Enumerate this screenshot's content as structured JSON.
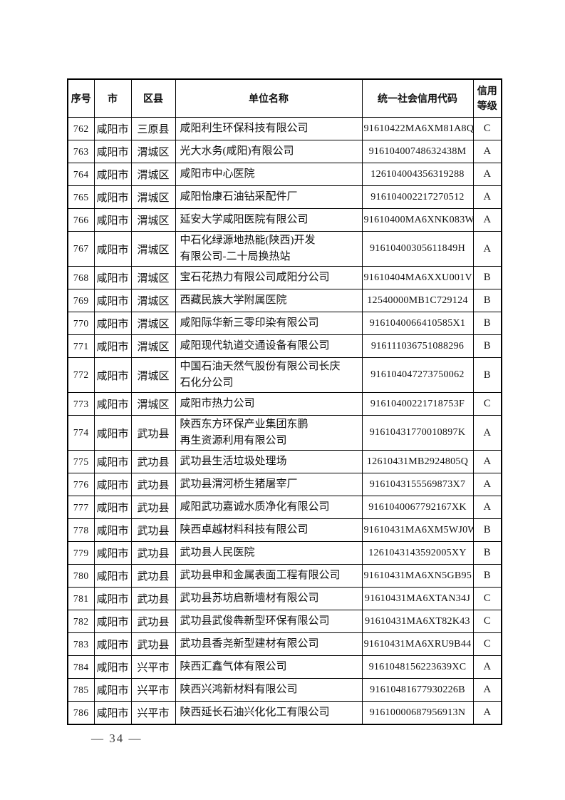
{
  "page": {
    "footer_page_number": "— 34 —"
  },
  "table": {
    "headers": [
      "序号",
      "市",
      "区县",
      "单位名称",
      "统一社会信用代码",
      "信用等级"
    ],
    "rows": [
      {
        "no": "762",
        "city": "咸阳市",
        "district": "三原县",
        "name_lines": [
          "咸阳利生环保科技有限公司"
        ],
        "code": "91610422MA6XM81A8Q",
        "grade": "C"
      },
      {
        "no": "763",
        "city": "咸阳市",
        "district": "渭城区",
        "name_lines": [
          "光大水务(咸阳)有限公司"
        ],
        "code": "91610400748632438M",
        "grade": "A"
      },
      {
        "no": "764",
        "city": "咸阳市",
        "district": "渭城区",
        "name_lines": [
          "咸阳市中心医院"
        ],
        "code": "126104004356319288",
        "grade": "A"
      },
      {
        "no": "765",
        "city": "咸阳市",
        "district": "渭城区",
        "name_lines": [
          "咸阳怡康石油钻采配件厂"
        ],
        "code": "916104002217270512",
        "grade": "A"
      },
      {
        "no": "766",
        "city": "咸阳市",
        "district": "渭城区",
        "name_lines": [
          "延安大学咸阳医院有限公司"
        ],
        "code": "91610400MA6XNK083W",
        "grade": "A"
      },
      {
        "no": "767",
        "city": "咸阳市",
        "district": "渭城区",
        "name_lines": [
          "中石化绿源地热能(陕西)开发",
          "有限公司-二十局换热站"
        ],
        "code": "91610400305611849H",
        "grade": "A"
      },
      {
        "no": "768",
        "city": "咸阳市",
        "district": "渭城区",
        "name_lines": [
          "宝石花热力有限公司咸阳分公司"
        ],
        "code": "91610404MA6XXU001V",
        "grade": "B"
      },
      {
        "no": "769",
        "city": "咸阳市",
        "district": "渭城区",
        "name_lines": [
          "西藏民族大学附属医院"
        ],
        "code": "12540000MB1C729124",
        "grade": "B"
      },
      {
        "no": "770",
        "city": "咸阳市",
        "district": "渭城区",
        "name_lines": [
          "咸阳际华新三零印染有限公司"
        ],
        "code": "9161040066410585X1",
        "grade": "B"
      },
      {
        "no": "771",
        "city": "咸阳市",
        "district": "渭城区",
        "name_lines": [
          "咸阳现代轨道交通设备有限公司"
        ],
        "code": "916111036751088296",
        "grade": "B"
      },
      {
        "no": "772",
        "city": "咸阳市",
        "district": "渭城区",
        "name_lines": [
          "中国石油天然气股份有限公司长庆",
          "石化分公司"
        ],
        "code": "916104047273750062",
        "grade": "B"
      },
      {
        "no": "773",
        "city": "咸阳市",
        "district": "渭城区",
        "name_lines": [
          "咸阳市热力公司"
        ],
        "code": "91610400221718753F",
        "grade": "C"
      },
      {
        "no": "774",
        "city": "咸阳市",
        "district": "武功县",
        "name_lines": [
          "陕西东方环保产业集团东鹏",
          "再生资源利用有限公司"
        ],
        "code": "91610431770010897K",
        "grade": "A"
      },
      {
        "no": "775",
        "city": "咸阳市",
        "district": "武功县",
        "name_lines": [
          "武功县生活垃圾处理场"
        ],
        "code": "12610431MB2924805Q",
        "grade": "A"
      },
      {
        "no": "776",
        "city": "咸阳市",
        "district": "武功县",
        "name_lines": [
          "武功县渭河桥生猪屠宰厂"
        ],
        "code": "9161043155569873X7",
        "grade": "A"
      },
      {
        "no": "777",
        "city": "咸阳市",
        "district": "武功县",
        "name_lines": [
          "咸阳武功嘉诚水质净化有限公司"
        ],
        "code": "9161040067792167XK",
        "grade": "A"
      },
      {
        "no": "778",
        "city": "咸阳市",
        "district": "武功县",
        "name_lines": [
          "陕西卓越材料科技有限公司"
        ],
        "code": "91610431MA6XM5WJ0W",
        "grade": "B"
      },
      {
        "no": "779",
        "city": "咸阳市",
        "district": "武功县",
        "name_lines": [
          "武功县人民医院"
        ],
        "code": "1261043143592005XY",
        "grade": "B"
      },
      {
        "no": "780",
        "city": "咸阳市",
        "district": "武功县",
        "name_lines": [
          "武功县申和金属表面工程有限公司"
        ],
        "code": "91610431MA6XN5GB95",
        "grade": "B"
      },
      {
        "no": "781",
        "city": "咸阳市",
        "district": "武功县",
        "name_lines": [
          "武功县苏坊启新墙材有限公司"
        ],
        "code": "91610431MA6XTAN34J",
        "grade": "C"
      },
      {
        "no": "782",
        "city": "咸阳市",
        "district": "武功县",
        "name_lines": [
          "武功县武俊犇新型环保有限公司"
        ],
        "code": "91610431MA6XT82K43",
        "grade": "C"
      },
      {
        "no": "783",
        "city": "咸阳市",
        "district": "武功县",
        "name_lines": [
          "武功县香尧新型建材有限公司"
        ],
        "code": "91610431MA6XRU9B44",
        "grade": "C"
      },
      {
        "no": "784",
        "city": "咸阳市",
        "district": "兴平市",
        "name_lines": [
          "陕西汇鑫气体有限公司"
        ],
        "code": "9161048156223639XC",
        "grade": "A"
      },
      {
        "no": "785",
        "city": "咸阳市",
        "district": "兴平市",
        "name_lines": [
          "陕西兴鸿新材料有限公司"
        ],
        "code": "91610481677930226B",
        "grade": "A"
      },
      {
        "no": "786",
        "city": "咸阳市",
        "district": "兴平市",
        "name_lines": [
          "陕西延长石油兴化化工有限公司"
        ],
        "code": "91610000687956913N",
        "grade": "A"
      }
    ]
  }
}
